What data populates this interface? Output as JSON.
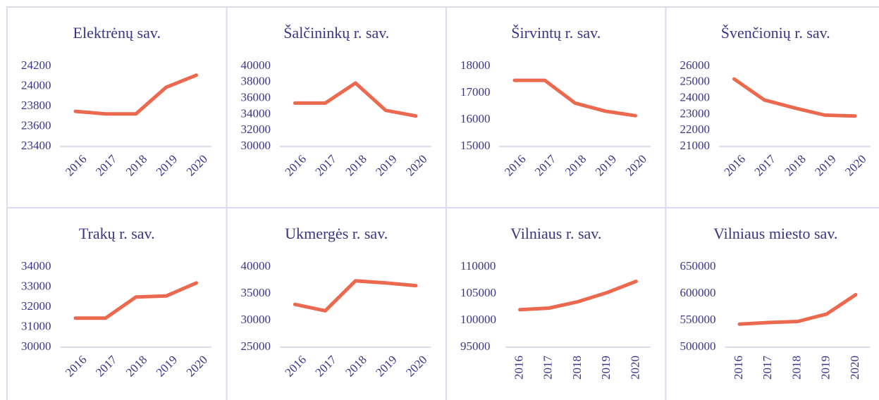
{
  "chart_data": [
    {
      "type": "line",
      "title": "Elektrėnų sav.",
      "categories": [
        "2016",
        "2017",
        "2018",
        "2019",
        "2020"
      ],
      "values": [
        23750,
        23725,
        23725,
        23990,
        24110
      ],
      "color": "#eb6a4f",
      "ylim": [
        23400,
        24200
      ],
      "yticks": [
        23400,
        23600,
        23800,
        24000,
        24200
      ],
      "xlabel_rotation": -45
    },
    {
      "type": "line",
      "title": "Šalčininkų r. sav.",
      "categories": [
        "2016",
        "2017",
        "2018",
        "2019",
        "2020"
      ],
      "values": [
        35400,
        35400,
        37900,
        34500,
        33800
      ],
      "color": "#eb6a4f",
      "ylim": [
        30000,
        40000
      ],
      "yticks": [
        30000,
        32000,
        34000,
        36000,
        38000,
        40000
      ],
      "xlabel_rotation": -45
    },
    {
      "type": "line",
      "title": "Širvintų r. sav.",
      "categories": [
        "2016",
        "2017",
        "2018",
        "2019",
        "2020"
      ],
      "values": [
        17470,
        17470,
        16620,
        16320,
        16150
      ],
      "color": "#eb6a4f",
      "ylim": [
        15000,
        18000
      ],
      "yticks": [
        15000,
        16000,
        17000,
        18000
      ],
      "xlabel_rotation": -45
    },
    {
      "type": "line",
      "title": "Švenčionių r. sav.",
      "categories": [
        "2016",
        "2017",
        "2018",
        "2019",
        "2020"
      ],
      "values": [
        25200,
        23900,
        23400,
        22950,
        22900
      ],
      "color": "#eb6a4f",
      "ylim": [
        21000,
        26000
      ],
      "yticks": [
        21000,
        22000,
        23000,
        24000,
        25000,
        26000
      ],
      "xlabel_rotation": -45
    },
    {
      "type": "line",
      "title": "Trakų r. sav.",
      "categories": [
        "2016",
        "2017",
        "2018",
        "2019",
        "2020"
      ],
      "values": [
        31450,
        31450,
        32500,
        32550,
        33200
      ],
      "color": "#eb6a4f",
      "ylim": [
        30000,
        34000
      ],
      "yticks": [
        30000,
        31000,
        32000,
        33000,
        34000
      ],
      "xlabel_rotation": -45
    },
    {
      "type": "line",
      "title": "Ukmergės r. sav.",
      "categories": [
        "2016",
        "2017",
        "2018",
        "2019",
        "2020"
      ],
      "values": [
        33000,
        31800,
        37400,
        37000,
        36500
      ],
      "color": "#eb6a4f",
      "ylim": [
        25000,
        40000
      ],
      "yticks": [
        25000,
        30000,
        35000,
        40000
      ],
      "xlabel_rotation": -45
    },
    {
      "type": "line",
      "title": "Vilniaus r. sav.",
      "categories": [
        "2016",
        "2017",
        "2018",
        "2019",
        "2020"
      ],
      "values": [
        102000,
        102300,
        103500,
        105200,
        107300
      ],
      "color": "#eb6a4f",
      "ylim": [
        95000,
        110000
      ],
      "yticks": [
        95000,
        100000,
        105000,
        110000
      ],
      "xlabel_rotation": -90
    },
    {
      "type": "line",
      "title": "Vilniaus miesto sav.",
      "categories": [
        "2016",
        "2017",
        "2018",
        "2019",
        "2020"
      ],
      "values": [
        543000,
        546000,
        548000,
        562000,
        598000
      ],
      "color": "#eb6a4f",
      "ylim": [
        500000,
        650000
      ],
      "yticks": [
        500000,
        550000,
        600000,
        650000
      ],
      "xlabel_rotation": -90
    }
  ]
}
